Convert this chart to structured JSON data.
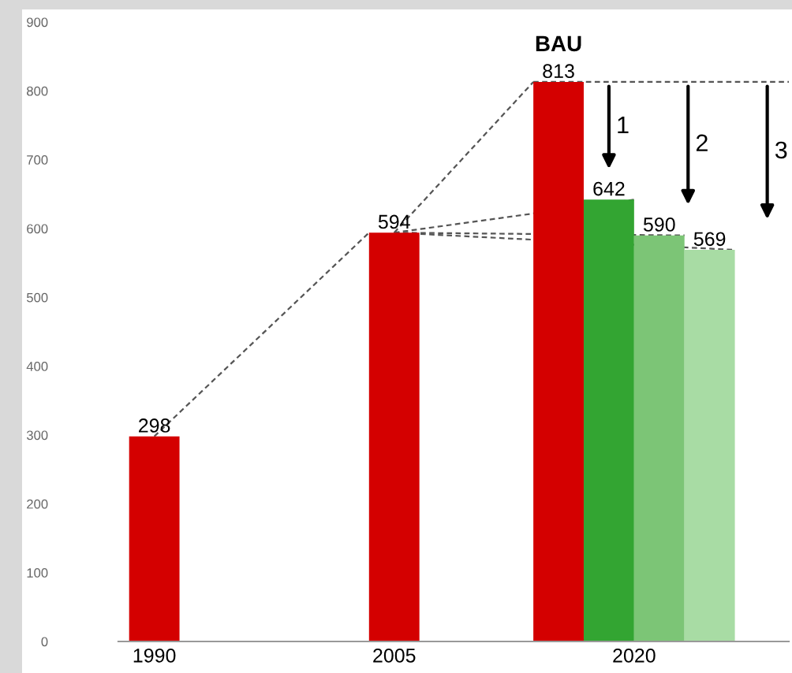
{
  "chart_data": {
    "type": "bar",
    "categories": [
      "1990",
      "2005",
      "2020"
    ],
    "series": [
      {
        "name": "BAU",
        "color": "#d40000",
        "values": [
          298,
          594,
          813
        ]
      },
      {
        "color": "#33a532",
        "values": [
          null,
          null,
          642
        ]
      },
      {
        "color": "#7cc576",
        "values": [
          null,
          null,
          590
        ]
      },
      {
        "color": "#a8dca4",
        "values": [
          null,
          null,
          569
        ]
      }
    ],
    "ylim": [
      0,
      900
    ],
    "yticks": [
      0,
      100,
      200,
      300,
      400,
      500,
      600,
      700,
      800,
      900
    ],
    "data_labels": true,
    "grid": false,
    "legend": false,
    "annotations": [
      "1",
      "2",
      "3"
    ]
  }
}
